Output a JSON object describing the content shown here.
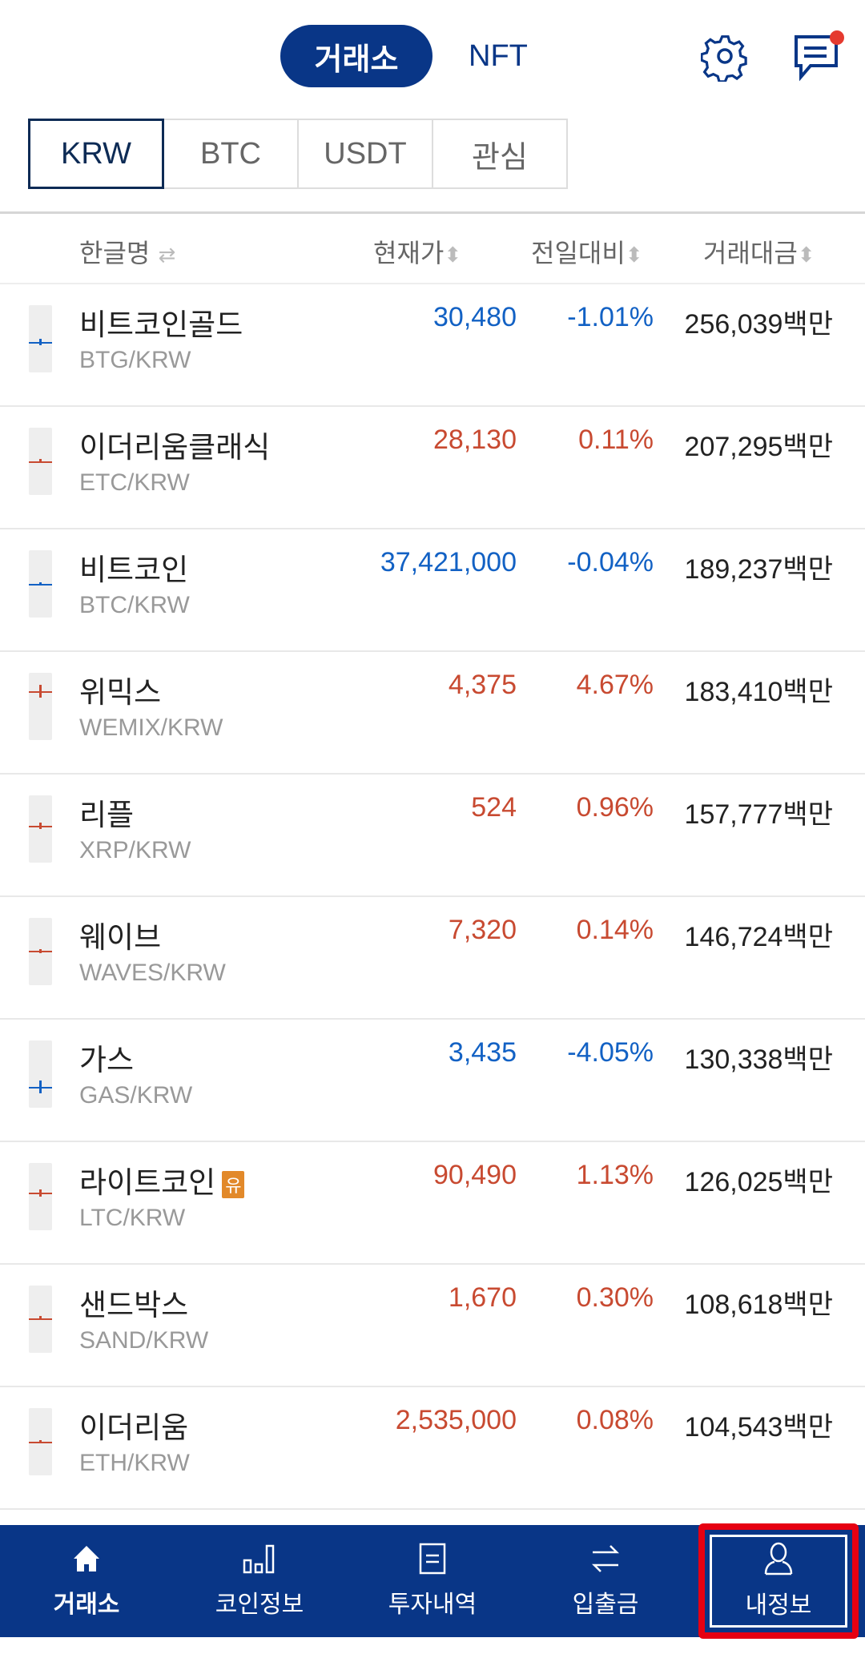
{
  "header": {
    "tabs": [
      {
        "label": "거래소",
        "active": true
      },
      {
        "label": "NFT",
        "active": false
      }
    ],
    "icons": [
      "gear-icon",
      "chat-icon"
    ],
    "notification_dot": true
  },
  "market_tabs": [
    {
      "label": "KRW",
      "active": true
    },
    {
      "label": "BTC"
    },
    {
      "label": "USDT"
    },
    {
      "label": "관심"
    }
  ],
  "columns": {
    "name": "한글명",
    "price": "현재가",
    "change": "전일대비",
    "volume": "거래대금",
    "swap_icon": "⇄",
    "sort_icon": "⬍"
  },
  "colors": {
    "brand": "#093687",
    "up": "#c84a31",
    "down": "#1261c4",
    "badge": "#e2892a"
  },
  "rows": [
    {
      "name": "비트코인골드",
      "pair": "BTG/KRW",
      "price": "30,480",
      "change": "-1.01%",
      "volume": "256,039백만",
      "dir": "down"
    },
    {
      "name": "이더리움클래식",
      "pair": "ETC/KRW",
      "price": "28,130",
      "change": "0.11%",
      "volume": "207,295백만",
      "dir": "up"
    },
    {
      "name": "비트코인",
      "pair": "BTC/KRW",
      "price": "37,421,000",
      "change": "-0.04%",
      "volume": "189,237백만",
      "dir": "down"
    },
    {
      "name": "위믹스",
      "pair": "WEMIX/KRW",
      "price": "4,375",
      "change": "4.67%",
      "volume": "183,410백만",
      "dir": "up"
    },
    {
      "name": "리플",
      "pair": "XRP/KRW",
      "price": "524",
      "change": "0.96%",
      "volume": "157,777백만",
      "dir": "up"
    },
    {
      "name": "웨이브",
      "pair": "WAVES/KRW",
      "price": "7,320",
      "change": "0.14%",
      "volume": "146,724백만",
      "dir": "up"
    },
    {
      "name": "가스",
      "pair": "GAS/KRW",
      "price": "3,435",
      "change": "-4.05%",
      "volume": "130,338백만",
      "dir": "down"
    },
    {
      "name": "라이트코인",
      "badge": "유",
      "pair": "LTC/KRW",
      "price": "90,490",
      "change": "1.13%",
      "volume": "126,025백만",
      "dir": "up"
    },
    {
      "name": "샌드박스",
      "pair": "SAND/KRW",
      "price": "1,670",
      "change": "0.30%",
      "volume": "108,618백만",
      "dir": "up"
    },
    {
      "name": "이더리움",
      "pair": "ETH/KRW",
      "price": "2,535,000",
      "change": "0.08%",
      "volume": "104,543백만",
      "dir": "up"
    }
  ],
  "bottom_nav": [
    {
      "label": "거래소",
      "icon": "home-icon",
      "active": true
    },
    {
      "label": "코인정보",
      "icon": "bar-chart-icon"
    },
    {
      "label": "투자내역",
      "icon": "document-icon"
    },
    {
      "label": "입출금",
      "icon": "transfer-icon"
    },
    {
      "label": "내정보",
      "icon": "user-icon",
      "highlighted": true
    }
  ]
}
